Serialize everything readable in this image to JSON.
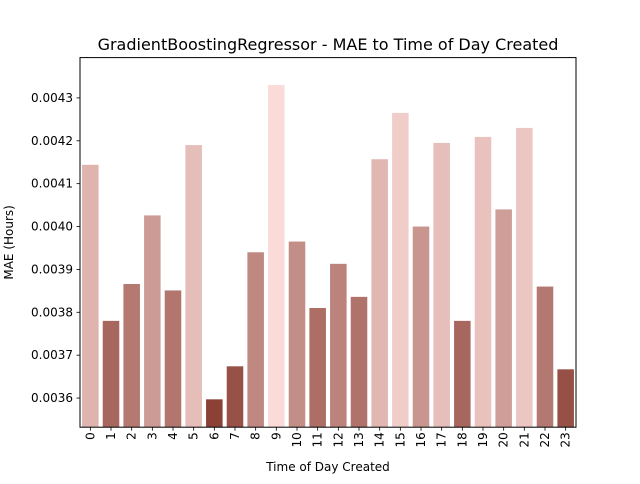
{
  "chart_data": {
    "type": "bar",
    "title": "GradientBoostingRegressor - MAE to Time of Day Created",
    "xlabel": "Time of Day Created",
    "ylabel": "MAE (Hours)",
    "categories": [
      "0",
      "1",
      "2",
      "3",
      "4",
      "5",
      "6",
      "7",
      "8",
      "9",
      "10",
      "11",
      "12",
      "13",
      "14",
      "15",
      "16",
      "17",
      "18",
      "19",
      "20",
      "21",
      "22",
      "23"
    ],
    "values": [
      0.004144,
      0.00378,
      0.003866,
      0.004026,
      0.003851,
      0.00419,
      0.003597,
      0.003674,
      0.00394,
      0.00433,
      0.003965,
      0.00381,
      0.003913,
      0.003836,
      0.004157,
      0.004265,
      0.004,
      0.004195,
      0.00378,
      0.004209,
      0.00404,
      0.00423,
      0.00386,
      0.003667
    ],
    "ylim": [
      0.003532,
      0.004394
    ],
    "yticks": [
      0.0036,
      0.0037,
      0.0038,
      0.0039,
      0.004,
      0.0041,
      0.0042,
      0.0043
    ],
    "ytick_labels": [
      "0.0036",
      "0.0037",
      "0.0038",
      "0.0039",
      "0.0040",
      "0.0041",
      "0.0042",
      "0.0043"
    ],
    "grid": false,
    "legend": "none",
    "palette": {
      "low": "#8b4136",
      "high": "#fbdbd8"
    }
  }
}
